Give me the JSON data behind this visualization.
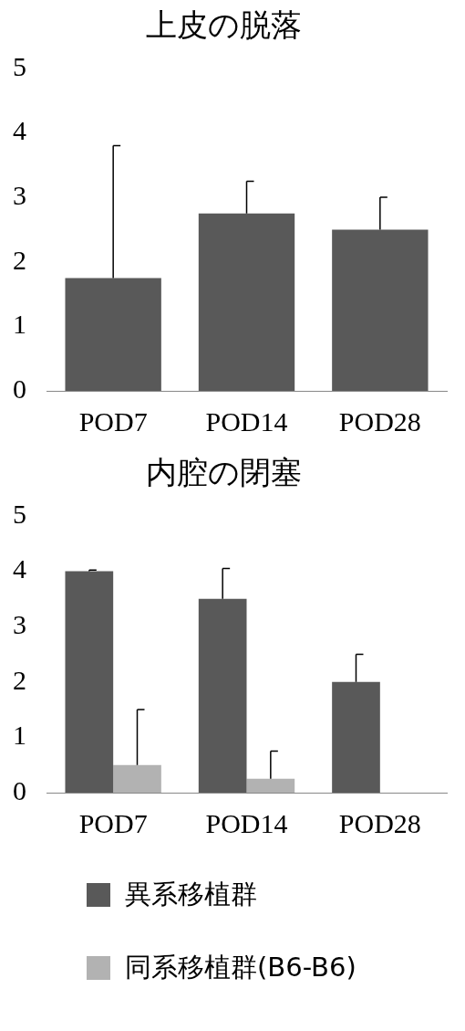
{
  "chart_data": [
    {
      "type": "bar",
      "title": "上皮の脱落",
      "categories": [
        "POD7",
        "POD14",
        "POD28"
      ],
      "ylim": [
        0,
        5
      ],
      "yticks": [
        0,
        1,
        2,
        3,
        4,
        5
      ],
      "grid": false,
      "legend": false,
      "series": [
        {
          "color": "#595959",
          "values": [
            1.75,
            2.75,
            2.5
          ],
          "errors": [
            [
              1.75,
              3.8
            ],
            [
              2.75,
              3.25
            ],
            [
              2.5,
              3.0
            ]
          ]
        }
      ]
    },
    {
      "type": "bar",
      "title": "内腔の閉塞",
      "categories": [
        "POD7",
        "POD14",
        "POD28"
      ],
      "ylim": [
        0,
        5
      ],
      "yticks": [
        0,
        1,
        2,
        3,
        4,
        5
      ],
      "grid": false,
      "legend": "bottom",
      "series": [
        {
          "name": "異系移植群",
          "color": "#595959",
          "values": [
            4.0,
            3.5,
            2.0
          ],
          "errors": [
            [
              4.0,
              4.02
            ],
            [
              3.5,
              4.05
            ],
            [
              2.0,
              2.5
            ]
          ]
        },
        {
          "name": "同系移植群(B6-B6)",
          "color": "#b2b2b2",
          "values": [
            0.5,
            0.25,
            null
          ],
          "errors": [
            [
              0.5,
              1.5
            ],
            [
              0.25,
              0.75
            ],
            null
          ]
        }
      ]
    }
  ]
}
